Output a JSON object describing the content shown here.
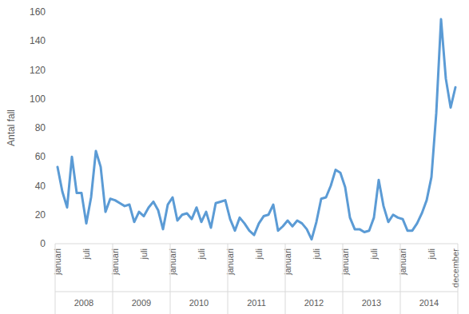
{
  "chart_data": {
    "type": "line",
    "y_label": "Antal fall",
    "categories": [
      "januari",
      null,
      null,
      null,
      null,
      null,
      "juli",
      null,
      null,
      null,
      null,
      null,
      "januari",
      null,
      null,
      null,
      null,
      null,
      "juli",
      null,
      null,
      null,
      null,
      null,
      "januari",
      null,
      null,
      null,
      null,
      null,
      "juli",
      null,
      null,
      null,
      null,
      null,
      "januari",
      null,
      null,
      null,
      null,
      null,
      "juli",
      null,
      null,
      null,
      null,
      null,
      "januari",
      null,
      null,
      null,
      null,
      null,
      "juli",
      null,
      null,
      null,
      null,
      null,
      "januari",
      null,
      null,
      null,
      null,
      null,
      "juli",
      null,
      null,
      null,
      null,
      null,
      "januari",
      null,
      null,
      null,
      null,
      null,
      "juli",
      null,
      null,
      null,
      null,
      "december"
    ],
    "year_labels": [
      "2008",
      "2009",
      "2010",
      "2011",
      "2012",
      "2013",
      "2014"
    ],
    "values": [
      53,
      36,
      25,
      60,
      35,
      35,
      14,
      32,
      64,
      53,
      22,
      31,
      30,
      28,
      26,
      27,
      15,
      22,
      19,
      25,
      29,
      23,
      10,
      27,
      32,
      16,
      20,
      21,
      17,
      25,
      15,
      22,
      11,
      28,
      29,
      30,
      17,
      9,
      18,
      14,
      9,
      6,
      14,
      19,
      20,
      27,
      9,
      12,
      16,
      12,
      16,
      14,
      10,
      3,
      15,
      31,
      32,
      40,
      51,
      49,
      39,
      18,
      10,
      10,
      8,
      9,
      18,
      44,
      26,
      15,
      20,
      18,
      17,
      9,
      9,
      14,
      21,
      30,
      46,
      90,
      155,
      114,
      94,
      108
    ],
    "color": "#5b9bd5",
    "ylim": [
      0,
      160
    ],
    "yticks": [
      0,
      20,
      40,
      60,
      80,
      100,
      120,
      140,
      160
    ],
    "grid": false
  }
}
